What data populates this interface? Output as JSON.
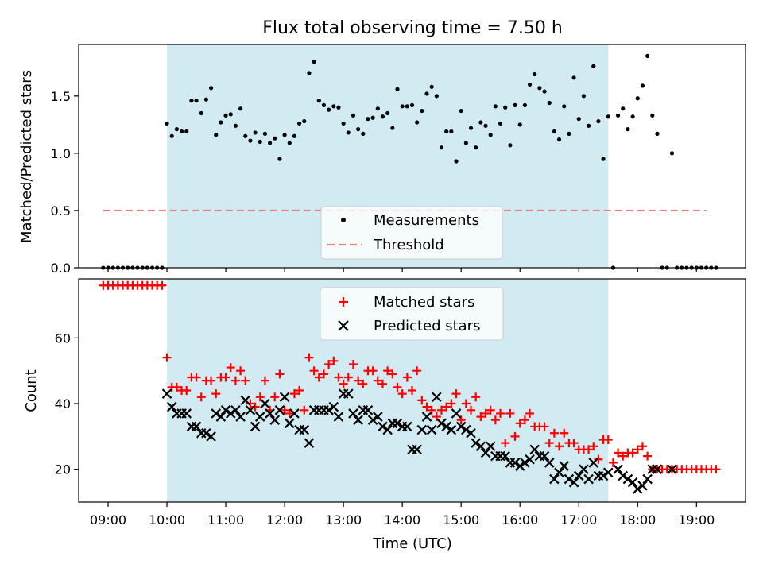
{
  "chart_data": [
    {
      "type": "scatter",
      "title": "Flux total observing time = 7.50 h",
      "ylabel": "Matched/Predicted stars",
      "xlim": [
        "08:30",
        "19:50"
      ],
      "ylim": [
        0,
        1.95
      ],
      "yticks": [
        0.0,
        0.5,
        1.0,
        1.5
      ],
      "ytick_labels": [
        "0.0",
        "0.5",
        "1.0",
        "1.5"
      ],
      "shaded_interval": [
        "10:00",
        "17:30"
      ],
      "threshold": {
        "name": "Threshold",
        "value": 0.5,
        "x_range": [
          "08:55",
          "19:10"
        ],
        "color": "#f08080"
      },
      "legend": {
        "position": "lower-center",
        "entries": [
          "Measurements",
          "Threshold"
        ]
      },
      "series": [
        {
          "name": "Measurements",
          "color": "#000000",
          "marker": "dot",
          "x": [
            "08:55",
            "09:00",
            "09:05",
            "09:10",
            "09:15",
            "09:20",
            "09:25",
            "09:30",
            "09:35",
            "09:40",
            "09:45",
            "09:50",
            "09:55",
            "10:00",
            "10:05",
            "10:10",
            "10:15",
            "10:20",
            "10:25",
            "10:30",
            "10:35",
            "10:40",
            "10:45",
            "10:50",
            "10:55",
            "11:00",
            "11:05",
            "11:10",
            "11:15",
            "11:20",
            "11:25",
            "11:30",
            "11:35",
            "11:40",
            "11:45",
            "11:50",
            "11:55",
            "12:00",
            "12:05",
            "12:10",
            "12:15",
            "12:20",
            "12:25",
            "12:30",
            "12:35",
            "12:40",
            "12:45",
            "12:50",
            "12:55",
            "13:00",
            "13:05",
            "13:10",
            "13:15",
            "13:20",
            "13:25",
            "13:30",
            "13:35",
            "13:40",
            "13:45",
            "13:50",
            "13:55",
            "14:00",
            "14:05",
            "14:10",
            "14:15",
            "14:20",
            "14:25",
            "14:30",
            "14:35",
            "14:40",
            "14:45",
            "14:50",
            "14:55",
            "15:00",
            "15:05",
            "15:10",
            "15:15",
            "15:20",
            "15:25",
            "15:30",
            "15:35",
            "15:40",
            "15:45",
            "15:50",
            "15:55",
            "16:00",
            "16:05",
            "16:10",
            "16:15",
            "16:20",
            "16:25",
            "16:30",
            "16:35",
            "16:40",
            "16:45",
            "16:50",
            "16:55",
            "17:00",
            "17:05",
            "17:10",
            "17:15",
            "17:20",
            "17:25",
            "17:30",
            "17:35",
            "17:40",
            "17:45",
            "17:50",
            "17:55",
            "18:00",
            "18:05",
            "18:10",
            "18:15",
            "18:20",
            "18:25",
            "18:30",
            "18:35",
            "18:40",
            "18:45",
            "18:50",
            "18:55",
            "19:00",
            "19:05",
            "19:10",
            "19:15",
            "19:20"
          ],
          "y": [
            0,
            0,
            0,
            0,
            0,
            0,
            0,
            0,
            0,
            0,
            0,
            0,
            0,
            1.26,
            1.15,
            1.21,
            1.19,
            1.19,
            1.46,
            1.46,
            1.35,
            1.47,
            1.57,
            1.16,
            1.27,
            1.33,
            1.34,
            1.24,
            1.39,
            1.15,
            1.11,
            1.18,
            1.1,
            1.17,
            1.09,
            1.13,
            0.95,
            1.16,
            1.09,
            1.15,
            1.26,
            1.28,
            1.7,
            1.8,
            1.46,
            1.42,
            1.38,
            1.41,
            1.4,
            1.26,
            1.18,
            1.33,
            1.21,
            1.17,
            1.3,
            1.31,
            1.39,
            1.32,
            1.35,
            1.22,
            1.56,
            1.41,
            1.41,
            1.42,
            1.27,
            1.37,
            1.52,
            1.58,
            1.5,
            1.05,
            1.19,
            1.19,
            0.93,
            1.37,
            1.09,
            1.22,
            1.05,
            1.27,
            1.24,
            1.16,
            1.41,
            1.26,
            1.4,
            1.07,
            1.42,
            1.25,
            1.42,
            1.6,
            1.69,
            1.57,
            1.54,
            1.44,
            1.19,
            1.12,
            1.41,
            1.17,
            1.66,
            1.3,
            1.5,
            1.24,
            1.76,
            1.28,
            0.95,
            1.32,
            0,
            1.33,
            1.39,
            1.21,
            1.32,
            1.48,
            1.59,
            1.85,
            1.33,
            1.17,
            0,
            0,
            1.0,
            0,
            0,
            0,
            0,
            0,
            0,
            0,
            0,
            0
          ]
        }
      ]
    },
    {
      "type": "scatter",
      "xlabel": "Time (UTC)",
      "ylabel": "Count",
      "xlim": [
        "08:30",
        "19:50"
      ],
      "ylim": [
        10,
        78
      ],
      "yticks": [
        20,
        40,
        60
      ],
      "ytick_labels": [
        "20",
        "40",
        "60"
      ],
      "xticks": [
        "09:00",
        "10:00",
        "11:00",
        "12:00",
        "13:00",
        "14:00",
        "15:00",
        "16:00",
        "17:00",
        "18:00",
        "19:00"
      ],
      "shaded_interval": [
        "10:00",
        "17:30"
      ],
      "legend": {
        "position": "top-center",
        "entries": [
          "Matched stars",
          "Predicted stars"
        ]
      },
      "series": [
        {
          "name": "Matched stars",
          "color": "#ff0000",
          "marker": "plus",
          "x": [
            "08:55",
            "09:00",
            "09:05",
            "09:10",
            "09:15",
            "09:20",
            "09:25",
            "09:30",
            "09:35",
            "09:40",
            "09:45",
            "09:50",
            "09:55",
            "10:00",
            "10:05",
            "10:10",
            "10:15",
            "10:20",
            "10:25",
            "10:30",
            "10:35",
            "10:40",
            "10:45",
            "10:50",
            "10:55",
            "11:00",
            "11:05",
            "11:10",
            "11:15",
            "11:20",
            "11:25",
            "11:30",
            "11:35",
            "11:40",
            "11:45",
            "11:50",
            "11:55",
            "12:00",
            "12:05",
            "12:10",
            "12:15",
            "12:20",
            "12:25",
            "12:30",
            "12:35",
            "12:40",
            "12:45",
            "12:50",
            "12:55",
            "13:00",
            "13:05",
            "13:10",
            "13:15",
            "13:20",
            "13:25",
            "13:30",
            "13:35",
            "13:40",
            "13:45",
            "13:50",
            "13:55",
            "14:00",
            "14:05",
            "14:10",
            "14:15",
            "14:20",
            "14:25",
            "14:30",
            "14:35",
            "14:40",
            "14:45",
            "14:50",
            "14:55",
            "15:00",
            "15:05",
            "15:10",
            "15:15",
            "15:20",
            "15:25",
            "15:30",
            "15:35",
            "15:40",
            "15:45",
            "15:50",
            "15:55",
            "16:00",
            "16:05",
            "16:10",
            "16:15",
            "16:20",
            "16:25",
            "16:30",
            "16:35",
            "16:40",
            "16:45",
            "16:50",
            "16:55",
            "17:00",
            "17:05",
            "17:10",
            "17:15",
            "17:20",
            "17:25",
            "17:30",
            "17:35",
            "17:40",
            "17:45",
            "17:50",
            "17:55",
            "18:00",
            "18:05",
            "18:10",
            "18:15",
            "18:20",
            "18:25",
            "18:30",
            "18:35",
            "18:40",
            "18:45",
            "18:50",
            "18:55",
            "19:00",
            "19:05",
            "19:10",
            "19:15",
            "19:20"
          ],
          "y": [
            76,
            76,
            76,
            76,
            76,
            76,
            76,
            76,
            76,
            76,
            76,
            76,
            76,
            54,
            45,
            45,
            44,
            44,
            48,
            48,
            42,
            47,
            47,
            43,
            48,
            48,
            51,
            47,
            50,
            47,
            40,
            39,
            42,
            47,
            38,
            42,
            49,
            38,
            37,
            43,
            44,
            38,
            54,
            50,
            48,
            49,
            52,
            53,
            48,
            46,
            48,
            52,
            47,
            46,
            50,
            50,
            47,
            46,
            50,
            49,
            45,
            43,
            48,
            44,
            50,
            41,
            39,
            38,
            36,
            38,
            39,
            40,
            43,
            35,
            40,
            38,
            42,
            36,
            37,
            38,
            35,
            37,
            28,
            37,
            30,
            34,
            35,
            37,
            33,
            33,
            33,
            28,
            31,
            27,
            31,
            28,
            28,
            26,
            26,
            26,
            27,
            23,
            29,
            29,
            22,
            25,
            24,
            25,
            25,
            26,
            27,
            24,
            20,
            20,
            20,
            20,
            20,
            20,
            20,
            20,
            20,
            20,
            20,
            20,
            20,
            20
          ]
        },
        {
          "name": "Predicted stars",
          "color": "#000000",
          "marker": "x",
          "x": [
            "10:00",
            "10:05",
            "10:10",
            "10:15",
            "10:20",
            "10:25",
            "10:30",
            "10:35",
            "10:40",
            "10:45",
            "10:50",
            "10:55",
            "11:00",
            "11:05",
            "11:10",
            "11:15",
            "11:20",
            "11:25",
            "11:30",
            "11:35",
            "11:40",
            "11:45",
            "11:50",
            "11:55",
            "12:00",
            "12:05",
            "12:10",
            "12:15",
            "12:20",
            "12:25",
            "12:30",
            "12:35",
            "12:40",
            "12:45",
            "12:50",
            "12:55",
            "13:00",
            "13:05",
            "13:10",
            "13:15",
            "13:20",
            "13:25",
            "13:30",
            "13:35",
            "13:40",
            "13:45",
            "13:50",
            "13:55",
            "14:00",
            "14:05",
            "14:10",
            "14:15",
            "14:20",
            "14:25",
            "14:30",
            "14:35",
            "14:40",
            "14:45",
            "14:50",
            "14:55",
            "15:00",
            "15:05",
            "15:10",
            "15:15",
            "15:20",
            "15:25",
            "15:30",
            "15:35",
            "15:40",
            "15:45",
            "15:50",
            "15:55",
            "16:00",
            "16:05",
            "16:10",
            "16:15",
            "16:20",
            "16:25",
            "16:30",
            "16:35",
            "16:40",
            "16:45",
            "16:50",
            "16:55",
            "17:00",
            "17:05",
            "17:10",
            "17:15",
            "17:20",
            "17:25",
            "17:30",
            "17:40",
            "17:45",
            "17:50",
            "17:55",
            "18:00",
            "18:05",
            "18:10",
            "18:15",
            "18:20",
            "18:35"
          ],
          "y": [
            43,
            39,
            37,
            37,
            37,
            33,
            33,
            31,
            31,
            30,
            37,
            36,
            38,
            37,
            38,
            36,
            41,
            38,
            33,
            36,
            40,
            37,
            35,
            38,
            42,
            34,
            37,
            32,
            32,
            28,
            38,
            38,
            38,
            38,
            39,
            36,
            43,
            43,
            37,
            35,
            38,
            38,
            35,
            36,
            33,
            32,
            34,
            34,
            33,
            33,
            26,
            26,
            32,
            36,
            32,
            42,
            34,
            33,
            32,
            37,
            33,
            32,
            31,
            28,
            27,
            25,
            27,
            24,
            24,
            24,
            22,
            22,
            21,
            22,
            23,
            26,
            24,
            24,
            22,
            17,
            19,
            21,
            17,
            16,
            18,
            20,
            17,
            22,
            18,
            18,
            19,
            20,
            18,
            17,
            16,
            14,
            15,
            17,
            20,
            20,
            20
          ],
          "note_unused": ""
        }
      ]
    }
  ]
}
